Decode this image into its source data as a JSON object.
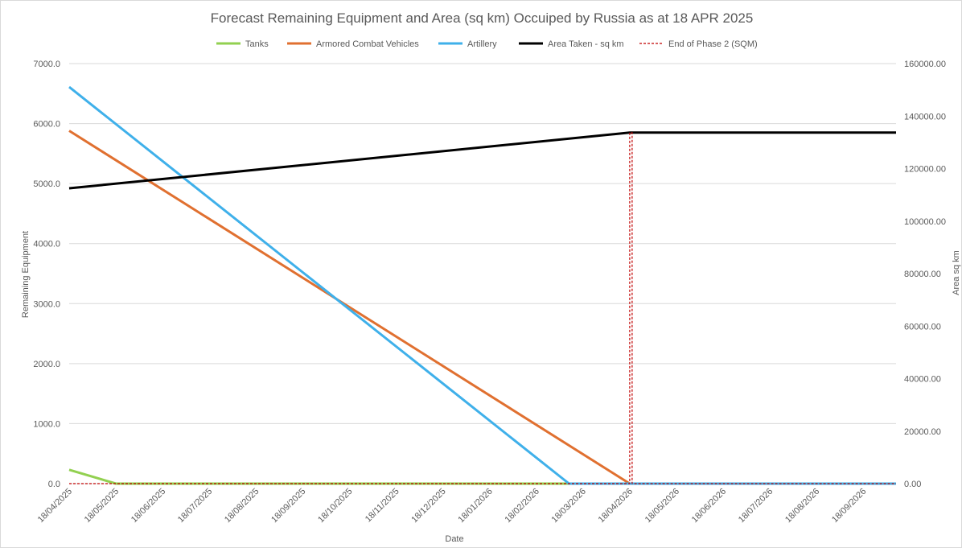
{
  "chart_data": {
    "type": "line",
    "title": "Forecast Remaining Equipment and Area (sq km) Occuiped by Russia as at 18 APR 2025",
    "xlabel": "Date",
    "ylabel": "Remaining Equipment",
    "y2label": "Area sq km",
    "ylim": [
      0,
      7000
    ],
    "y2lim": [
      0,
      160000
    ],
    "grid": true,
    "legend_position": "top",
    "x_domain_months": [
      0,
      17.7
    ],
    "y_ticks": [
      "0.0",
      "1000.0",
      "2000.0",
      "3000.0",
      "4000.0",
      "5000.0",
      "6000.0",
      "7000.0"
    ],
    "y2_ticks": [
      "0.00",
      "20000.00",
      "40000.00",
      "60000.00",
      "80000.00",
      "100000.00",
      "120000.00",
      "140000.00",
      "160000.00"
    ],
    "x_ticks": [
      "18/04/2025",
      "18/05/2025",
      "18/06/2025",
      "18/07/2025",
      "18/08/2025",
      "18/09/2025",
      "18/10/2025",
      "18/11/2025",
      "18/12/2025",
      "18/01/2026",
      "18/02/2026",
      "18/03/2026",
      "18/04/2026",
      "18/05/2026",
      "18/06/2026",
      "18/07/2026",
      "18/08/2026",
      "18/09/2026"
    ],
    "series": [
      {
        "name": "Tanks",
        "color": "#92d050",
        "width": 3,
        "axis": "left",
        "dash": "",
        "points": [
          [
            0,
            230
          ],
          [
            1,
            0
          ],
          [
            17.7,
            0
          ]
        ]
      },
      {
        "name": "Armored Combat Vehicles",
        "color": "#e07030",
        "width": 3,
        "axis": "left",
        "dash": "",
        "points": [
          [
            0,
            5880
          ],
          [
            12,
            0
          ],
          [
            17.7,
            0
          ]
        ]
      },
      {
        "name": "Artillery",
        "color": "#3fb0ea",
        "width": 3,
        "axis": "left",
        "dash": "",
        "points": [
          [
            0,
            6610
          ],
          [
            10.7,
            0
          ],
          [
            17.7,
            0
          ]
        ]
      },
      {
        "name": "Area Taken - sq km",
        "color": "#000000",
        "width": 3,
        "axis": "right",
        "dash": "",
        "points": [
          [
            0,
            112500
          ],
          [
            12,
            133700
          ],
          [
            17.7,
            133700
          ]
        ]
      },
      {
        "name": "End of Phase 2 (SQM)",
        "color": "#c00000",
        "width": 1.2,
        "axis": "left",
        "dash": "3,2",
        "points": [
          [
            0,
            0
          ],
          [
            12,
            0
          ],
          [
            12,
            5850
          ],
          [
            12.05,
            5850
          ],
          [
            12.05,
            0
          ],
          [
            17.7,
            0
          ]
        ]
      }
    ]
  }
}
